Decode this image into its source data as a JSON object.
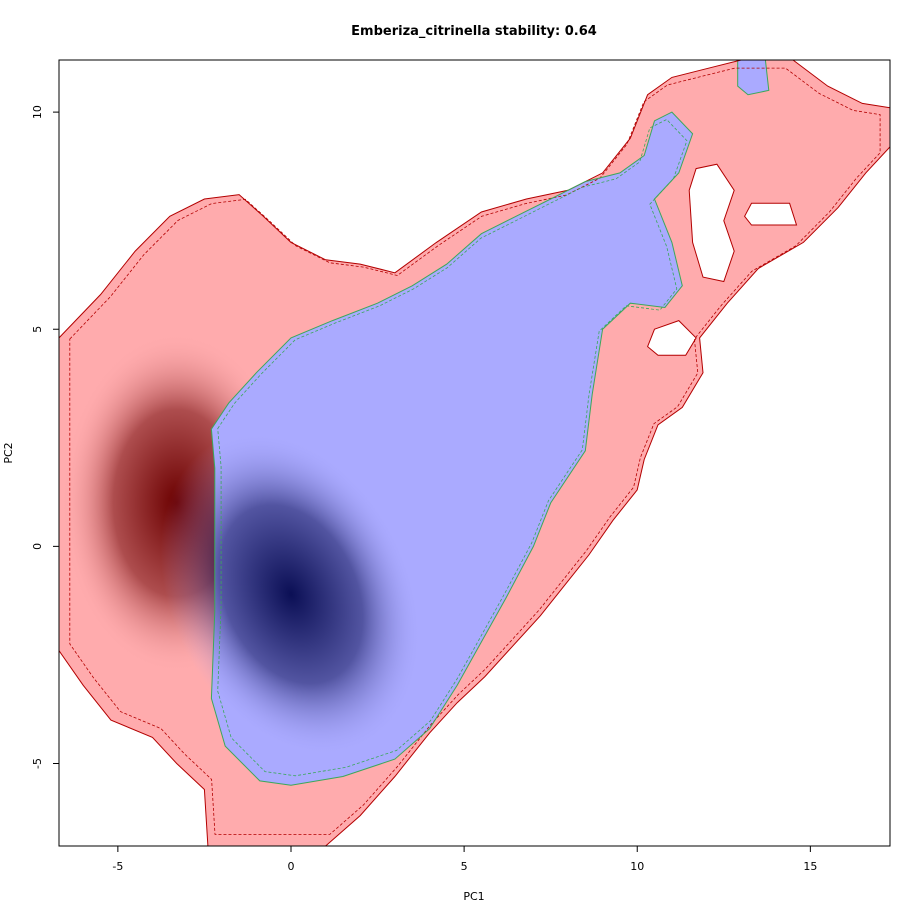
{
  "chart_data": {
    "type": "heatmap",
    "title": "Emberiza_citrinella stability: 0.64",
    "xlabel": "PC1",
    "ylabel": "PC2",
    "xlim": [
      -6.7,
      17.3
    ],
    "ylim": [
      -6.9,
      11.2
    ],
    "x_ticks": [
      -5,
      0,
      5,
      10,
      15
    ],
    "y_ticks": [
      -5,
      0,
      5,
      10
    ],
    "grid": false,
    "legend": "none",
    "colors": {
      "red_region": "#ffabad",
      "red_core": "#6b0000",
      "blue_region": "#aaaaff",
      "blue_core": "#0b0f55",
      "outer_contour": "#b30000",
      "inner_contour": "#3aa85a",
      "axis": "#000000"
    },
    "density_peaks": [
      {
        "name": "red",
        "x": -3.3,
        "y": 1.0
      },
      {
        "name": "blue",
        "x": 0.0,
        "y": -1.1
      }
    ],
    "regions": {
      "red_outer": [
        [
          -6.7,
          4.8
        ],
        [
          -5.5,
          5.8
        ],
        [
          -4.5,
          6.8
        ],
        [
          -3.5,
          7.6
        ],
        [
          -2.5,
          8.0
        ],
        [
          -1.5,
          8.1
        ],
        [
          -0.8,
          7.6
        ],
        [
          0,
          7.0
        ],
        [
          1.0,
          6.6
        ],
        [
          2.0,
          6.5
        ],
        [
          3.0,
          6.3
        ],
        [
          4.2,
          7.0
        ],
        [
          5.5,
          7.7
        ],
        [
          6.8,
          8.0
        ],
        [
          8.0,
          8.2
        ],
        [
          9.0,
          8.6
        ],
        [
          9.8,
          9.4
        ],
        [
          10.3,
          10.4
        ],
        [
          11.0,
          10.8
        ],
        [
          12.0,
          11.0
        ],
        [
          13.0,
          11.2
        ],
        [
          14.5,
          11.2
        ],
        [
          15.5,
          10.6
        ],
        [
          16.5,
          10.2
        ],
        [
          17.3,
          10.1
        ],
        [
          17.3,
          9.2
        ],
        [
          16.6,
          8.6
        ],
        [
          15.8,
          7.8
        ],
        [
          14.8,
          7.0
        ],
        [
          13.5,
          6.4
        ],
        [
          12.6,
          5.6
        ],
        [
          11.8,
          4.8
        ],
        [
          11.9,
          4.0
        ],
        [
          11.3,
          3.2
        ],
        [
          10.6,
          2.8
        ],
        [
          10.2,
          2.0
        ],
        [
          10.0,
          1.3
        ],
        [
          9.3,
          0.6
        ],
        [
          8.6,
          -0.2
        ],
        [
          7.9,
          -0.9
        ],
        [
          7.2,
          -1.6
        ],
        [
          6.4,
          -2.3
        ],
        [
          5.6,
          -3.0
        ],
        [
          4.8,
          -3.6
        ],
        [
          4.0,
          -4.3
        ],
        [
          3.0,
          -5.3
        ],
        [
          2.0,
          -6.2
        ],
        [
          1.0,
          -6.9
        ],
        [
          -2.4,
          -6.9
        ],
        [
          -2.5,
          -5.6
        ],
        [
          -3.3,
          -5.0
        ],
        [
          -4.0,
          -4.4
        ],
        [
          -5.2,
          -4.0
        ],
        [
          -6.0,
          -3.2
        ],
        [
          -6.7,
          -2.4
        ]
      ],
      "blue_inner": [
        [
          -2.3,
          2.7
        ],
        [
          -1.8,
          3.3
        ],
        [
          -1.0,
          4.0
        ],
        [
          0,
          4.8
        ],
        [
          1.2,
          5.2
        ],
        [
          2.5,
          5.6
        ],
        [
          3.5,
          6.0
        ],
        [
          4.5,
          6.5
        ],
        [
          5.5,
          7.2
        ],
        [
          6.5,
          7.6
        ],
        [
          7.5,
          8.0
        ],
        [
          8.5,
          8.4
        ],
        [
          9.5,
          8.6
        ],
        [
          10.2,
          9.0
        ],
        [
          10.5,
          9.8
        ],
        [
          11.0,
          10.0
        ],
        [
          11.6,
          9.5
        ],
        [
          11.2,
          8.6
        ],
        [
          10.5,
          8.0
        ],
        [
          11.0,
          7.0
        ],
        [
          11.3,
          6.0
        ],
        [
          10.8,
          5.5
        ],
        [
          9.8,
          5.6
        ],
        [
          9.0,
          5.0
        ],
        [
          8.7,
          3.5
        ],
        [
          8.5,
          2.2
        ],
        [
          7.5,
          1.0
        ],
        [
          7.0,
          0
        ],
        [
          6.2,
          -1.2
        ],
        [
          5.5,
          -2.2
        ],
        [
          4.8,
          -3.2
        ],
        [
          4.0,
          -4.2
        ],
        [
          3.0,
          -4.9
        ],
        [
          1.5,
          -5.3
        ],
        [
          0,
          -5.5
        ],
        [
          -0.9,
          -5.4
        ],
        [
          -1.9,
          -4.6
        ],
        [
          -2.3,
          -3.5
        ],
        [
          -2.2,
          -1.5
        ],
        [
          -2.2,
          0.5
        ],
        [
          -2.2,
          1.8
        ]
      ],
      "blue_top": [
        [
          12.9,
          11.2
        ],
        [
          13.7,
          11.2
        ],
        [
          13.8,
          10.5
        ],
        [
          13.2,
          10.4
        ],
        [
          12.9,
          10.6
        ]
      ],
      "holes": [
        [
          [
            11.5,
            8.2
          ],
          [
            11.6,
            7.0
          ],
          [
            11.9,
            6.2
          ],
          [
            12.5,
            6.1
          ],
          [
            12.8,
            6.8
          ],
          [
            12.5,
            7.5
          ],
          [
            12.8,
            8.2
          ],
          [
            12.3,
            8.8
          ],
          [
            11.7,
            8.7
          ]
        ],
        [
          [
            13.3,
            7.9
          ],
          [
            14.4,
            7.9
          ],
          [
            14.6,
            7.4
          ],
          [
            13.3,
            7.4
          ],
          [
            13.1,
            7.6
          ]
        ],
        [
          [
            10.5,
            5.0
          ],
          [
            11.2,
            5.2
          ],
          [
            11.7,
            4.8
          ],
          [
            11.4,
            4.4
          ],
          [
            10.6,
            4.4
          ],
          [
            10.3,
            4.6
          ]
        ]
      ]
    }
  }
}
